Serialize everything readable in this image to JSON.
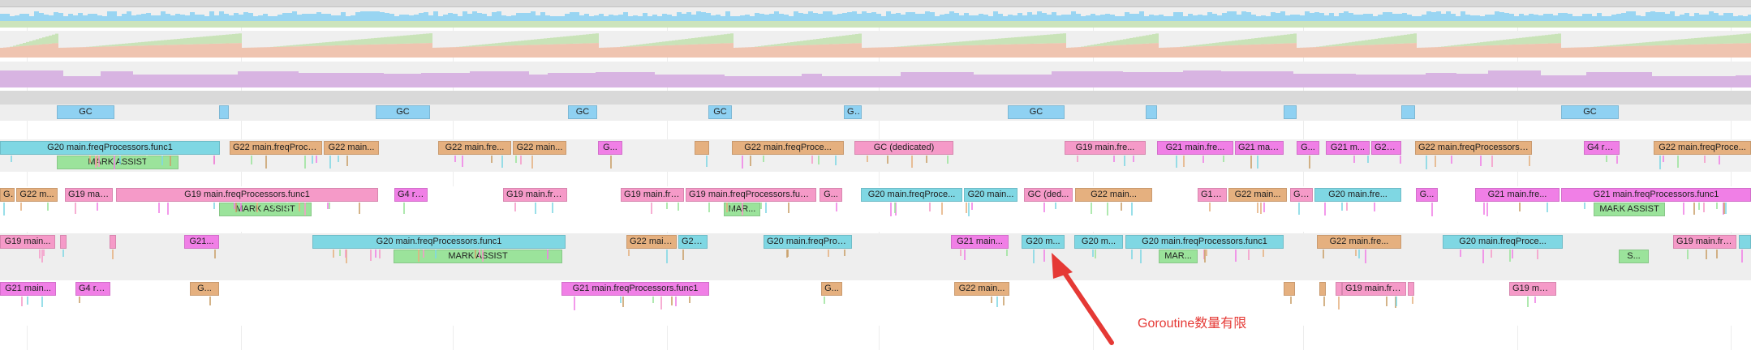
{
  "colors": {
    "gc": "#8fd1f2",
    "g20": "#7fd7e3",
    "g19": "#f59ac8",
    "g21": "#f07fe6",
    "g22": "#e5b07f",
    "g4": "#f07fe6",
    "mark": "#9be39b",
    "dedicated": "#f59ac8",
    "annotation": "#e53935",
    "heap_blue": "#8fd1f2",
    "heap_green": "#c9e3b8",
    "heap_salmon": "#efc4b0",
    "threads": "#d8b4e2"
  },
  "gc_row": [
    {
      "label": "GC",
      "start": 70,
      "end": 141
    },
    {
      "label": "",
      "start": 270,
      "end": 282
    },
    {
      "label": "GC",
      "start": 463,
      "end": 530
    },
    {
      "label": "GC",
      "start": 700,
      "end": 736
    },
    {
      "label": "GC",
      "start": 873,
      "end": 902
    },
    {
      "label": "GC",
      "start": 1040,
      "end": 1062
    },
    {
      "label": "GC",
      "start": 1242,
      "end": 1312
    },
    {
      "label": "",
      "start": 1412,
      "end": 1426
    },
    {
      "label": "",
      "start": 1582,
      "end": 1598
    },
    {
      "label": "",
      "start": 1727,
      "end": 1744
    },
    {
      "label": "GC",
      "start": 1924,
      "end": 1995
    }
  ],
  "proc_rows": [
    {
      "slices": [
        {
          "label": "G20 main.freqProcessors.func1",
          "start": 0,
          "end": 271,
          "color": "g20"
        },
        {
          "label": "G22 main.freqProce...",
          "start": 283,
          "end": 397,
          "color": "g22"
        },
        {
          "label": "G22 main...",
          "start": 399,
          "end": 467,
          "color": "g22"
        },
        {
          "label": "G22 main.fre...",
          "start": 540,
          "end": 630,
          "color": "g22"
        },
        {
          "label": "G22 main...",
          "start": 632,
          "end": 698,
          "color": "g22"
        },
        {
          "label": "G...",
          "start": 737,
          "end": 767,
          "color": "g21"
        },
        {
          "label": "",
          "start": 856,
          "end": 874,
          "color": "g22"
        },
        {
          "label": "G22 main.freqProce...",
          "start": 902,
          "end": 1040,
          "color": "g22"
        },
        {
          "label": "GC (dedicated)",
          "start": 1053,
          "end": 1175,
          "color": "dedicated"
        },
        {
          "label": "G19 main.fre...",
          "start": 1312,
          "end": 1412,
          "color": "g19"
        },
        {
          "label": "G21 main.fre...",
          "start": 1426,
          "end": 1520,
          "color": "g21"
        },
        {
          "label": "G21 main...",
          "start": 1522,
          "end": 1582,
          "color": "g21"
        },
        {
          "label": "G...",
          "start": 1598,
          "end": 1626,
          "color": "g21"
        },
        {
          "label": "G21 m...",
          "start": 1634,
          "end": 1688,
          "color": "g21"
        },
        {
          "label": "G21...",
          "start": 1690,
          "end": 1727,
          "color": "g21"
        },
        {
          "label": "G22 main.freqProcessors.func1",
          "start": 1744,
          "end": 1888,
          "color": "g22"
        },
        {
          "label": "G4 ru...",
          "start": 1952,
          "end": 1996,
          "color": "g4"
        },
        {
          "label": "G22 main.freqProce...",
          "start": 2038,
          "end": 2158,
          "color": "g22"
        }
      ],
      "assists": [
        {
          "label": "MARK ASSIST",
          "start": 70,
          "end": 220
        }
      ]
    },
    {
      "slices": [
        {
          "label": "G2",
          "start": 0,
          "end": 18,
          "color": "g22"
        },
        {
          "label": "G22 m...",
          "start": 20,
          "end": 71,
          "color": "g22"
        },
        {
          "label": "G19 main...",
          "start": 80,
          "end": 139,
          "color": "g19"
        },
        {
          "label": "G19 main.freqProcessors.func1",
          "start": 143,
          "end": 466,
          "color": "g19"
        },
        {
          "label": "G4 ru...",
          "start": 486,
          "end": 527,
          "color": "g4"
        },
        {
          "label": "G19 main.fre...",
          "start": 620,
          "end": 699,
          "color": "g19"
        },
        {
          "label": "G19 main.fre...",
          "start": 765,
          "end": 843,
          "color": "g19"
        },
        {
          "label": "G19 main.freqProcessors.func1",
          "start": 845,
          "end": 1006,
          "color": "g19"
        },
        {
          "label": "G...",
          "start": 1010,
          "end": 1038,
          "color": "g19"
        },
        {
          "label": "G20 main.freqProce...",
          "start": 1061,
          "end": 1186,
          "color": "g20"
        },
        {
          "label": "G20 main...",
          "start": 1188,
          "end": 1254,
          "color": "g20"
        },
        {
          "label": "GC (ded...",
          "start": 1262,
          "end": 1322,
          "color": "dedicated"
        },
        {
          "label": "G22 main...",
          "start": 1325,
          "end": 1420,
          "color": "g22"
        },
        {
          "label": "G19...",
          "start": 1476,
          "end": 1512,
          "color": "g19"
        },
        {
          "label": "G22 main...",
          "start": 1514,
          "end": 1586,
          "color": "g22"
        },
        {
          "label": "GC...",
          "start": 1590,
          "end": 1618,
          "color": "dedicated"
        },
        {
          "label": "G20 main.fre...",
          "start": 1620,
          "end": 1727,
          "color": "g20"
        },
        {
          "label": "G...",
          "start": 1745,
          "end": 1772,
          "color": "g21"
        },
        {
          "label": "G21 main.fre...",
          "start": 1818,
          "end": 1922,
          "color": "g21"
        },
        {
          "label": "G21 main.freqProcessors.func1",
          "start": 1924,
          "end": 2158,
          "color": "g21"
        }
      ],
      "assists": [
        {
          "label": "MARK ASSIST",
          "start": 270,
          "end": 384
        },
        {
          "label": "MAR...",
          "start": 892,
          "end": 937
        },
        {
          "label": "MARK ASSIST",
          "start": 1964,
          "end": 2052
        }
      ]
    },
    {
      "slices": [
        {
          "label": "G19 main...",
          "start": 0,
          "end": 68,
          "color": "g19"
        },
        {
          "label": "",
          "start": 74,
          "end": 80,
          "color": "g19"
        },
        {
          "label": "",
          "start": 135,
          "end": 139,
          "color": "g19"
        },
        {
          "label": "G21...",
          "start": 227,
          "end": 270,
          "color": "g21"
        },
        {
          "label": "G20 main.freqProcessors.func1",
          "start": 385,
          "end": 697,
          "color": "g20"
        },
        {
          "label": "G22 main...",
          "start": 772,
          "end": 834,
          "color": "g22"
        },
        {
          "label": "G20...",
          "start": 836,
          "end": 872,
          "color": "g20"
        },
        {
          "label": "G20 main.freqProce...",
          "start": 941,
          "end": 1050,
          "color": "g20"
        },
        {
          "label": "G21 main...",
          "start": 1172,
          "end": 1243,
          "color": "g21"
        },
        {
          "label": "G20 m...",
          "start": 1259,
          "end": 1312,
          "color": "g20"
        },
        {
          "label": "G20 m...",
          "start": 1324,
          "end": 1384,
          "color": "g20"
        },
        {
          "label": "G20 main.freqProcessors.func1",
          "start": 1387,
          "end": 1582,
          "color": "g20"
        },
        {
          "label": "G22 main.fre...",
          "start": 1623,
          "end": 1727,
          "color": "g22"
        },
        {
          "label": "G20 main.freqProce...",
          "start": 1778,
          "end": 1926,
          "color": "g20"
        },
        {
          "label": "G19 main.fre...",
          "start": 2062,
          "end": 2140,
          "color": "g19"
        },
        {
          "label": "",
          "start": 2143,
          "end": 2158,
          "color": "g20"
        }
      ],
      "assists": [
        {
          "label": "MARK ASSIST",
          "start": 485,
          "end": 693
        },
        {
          "label": "MAR...",
          "start": 1428,
          "end": 1476
        },
        {
          "label": "S...",
          "start": 1995,
          "end": 2032
        }
      ]
    },
    {
      "slices": [
        {
          "label": "G21 main...",
          "start": 0,
          "end": 69,
          "color": "g21"
        },
        {
          "label": "G4 ru...",
          "start": 93,
          "end": 136,
          "color": "g4"
        },
        {
          "label": "G...",
          "start": 234,
          "end": 270,
          "color": "g22"
        },
        {
          "label": "G21 main.freqProcessors.func1",
          "start": 692,
          "end": 874,
          "color": "g21"
        },
        {
          "label": "G...",
          "start": 1012,
          "end": 1038,
          "color": "g22"
        },
        {
          "label": "G22 main...",
          "start": 1176,
          "end": 1244,
          "color": "g22"
        },
        {
          "label": "",
          "start": 1582,
          "end": 1596,
          "color": "g22"
        },
        {
          "label": "",
          "start": 1626,
          "end": 1634,
          "color": "g22"
        },
        {
          "label": "",
          "start": 1646,
          "end": 1654,
          "color": "g19"
        },
        {
          "label": "G19 main.fre...",
          "start": 1654,
          "end": 1733,
          "color": "g19"
        },
        {
          "label": "",
          "start": 1735,
          "end": 1743,
          "color": "g19"
        },
        {
          "label": "G19 main...",
          "start": 1860,
          "end": 1918,
          "color": "g19"
        }
      ],
      "assists": []
    }
  ],
  "annotation": {
    "text": "Goroutine数量有限"
  }
}
